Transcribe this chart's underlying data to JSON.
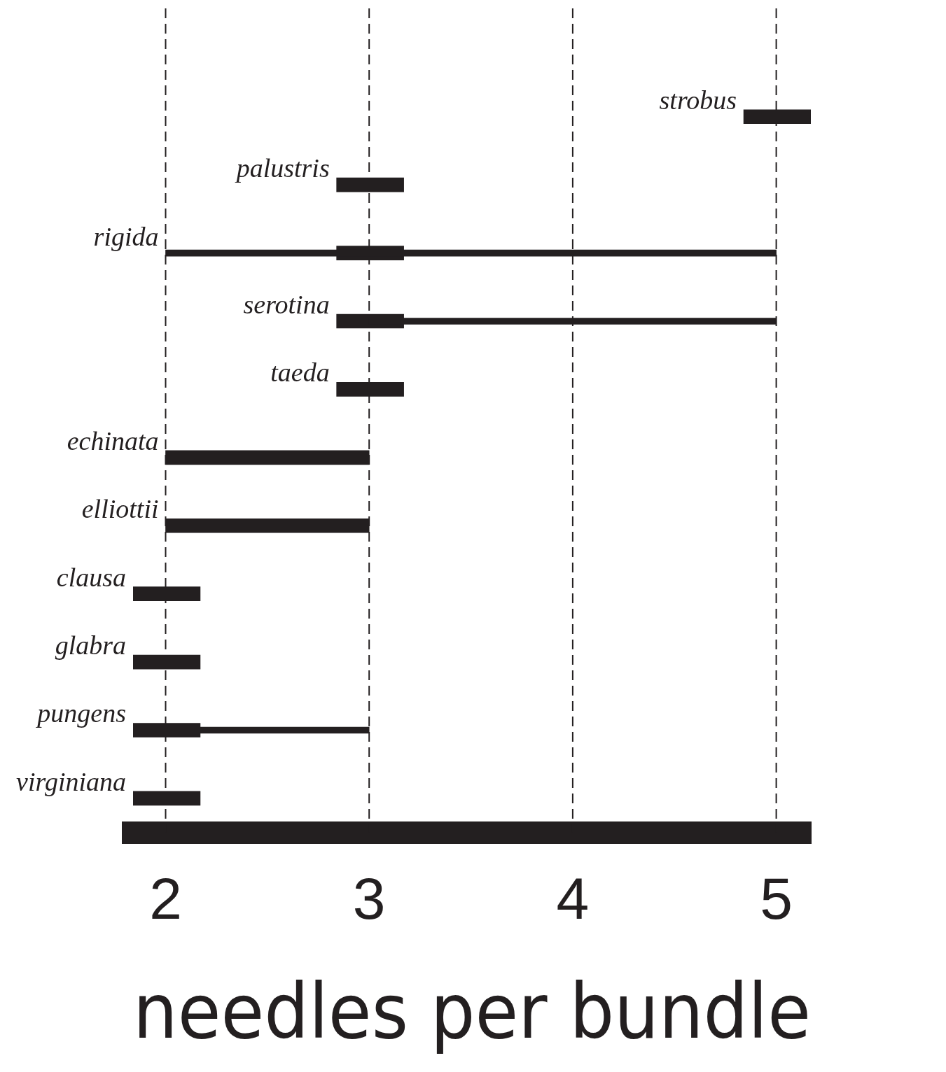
{
  "chart_data": {
    "type": "bar",
    "orientation": "horizontal",
    "xlabel": "needles per bundle",
    "categories": [
      "strobus",
      "palustris",
      "rigida",
      "serotina",
      "taeda",
      "echinata",
      "elliottii",
      "clausa",
      "glabra",
      "pungens",
      "virginiana"
    ],
    "series": [
      {
        "color": "#231f20",
        "line_style": "dotted",
        "base": [
          null,
          null,
          2,
          3,
          null,
          null,
          null,
          null,
          null,
          2.17,
          null
        ],
        "values": [
          null,
          null,
          3,
          2,
          null,
          null,
          null,
          null,
          null,
          0.83,
          null
        ]
      },
      {
        "color": "#231f20",
        "line_style": "solid",
        "base": [
          4.84,
          2.84,
          2.84,
          2.84,
          2.84,
          2,
          2,
          1.84,
          1.84,
          1.84,
          1.84
        ],
        "values": [
          0.33,
          0.33,
          0.33,
          0.33,
          0.33,
          1,
          1,
          0.33,
          0.33,
          0.33,
          0.33
        ]
      }
    ],
    "xlim": [
      1.84,
      5.17
    ],
    "xticks": [
      2,
      3,
      4,
      5
    ],
    "grid": "x"
  }
}
